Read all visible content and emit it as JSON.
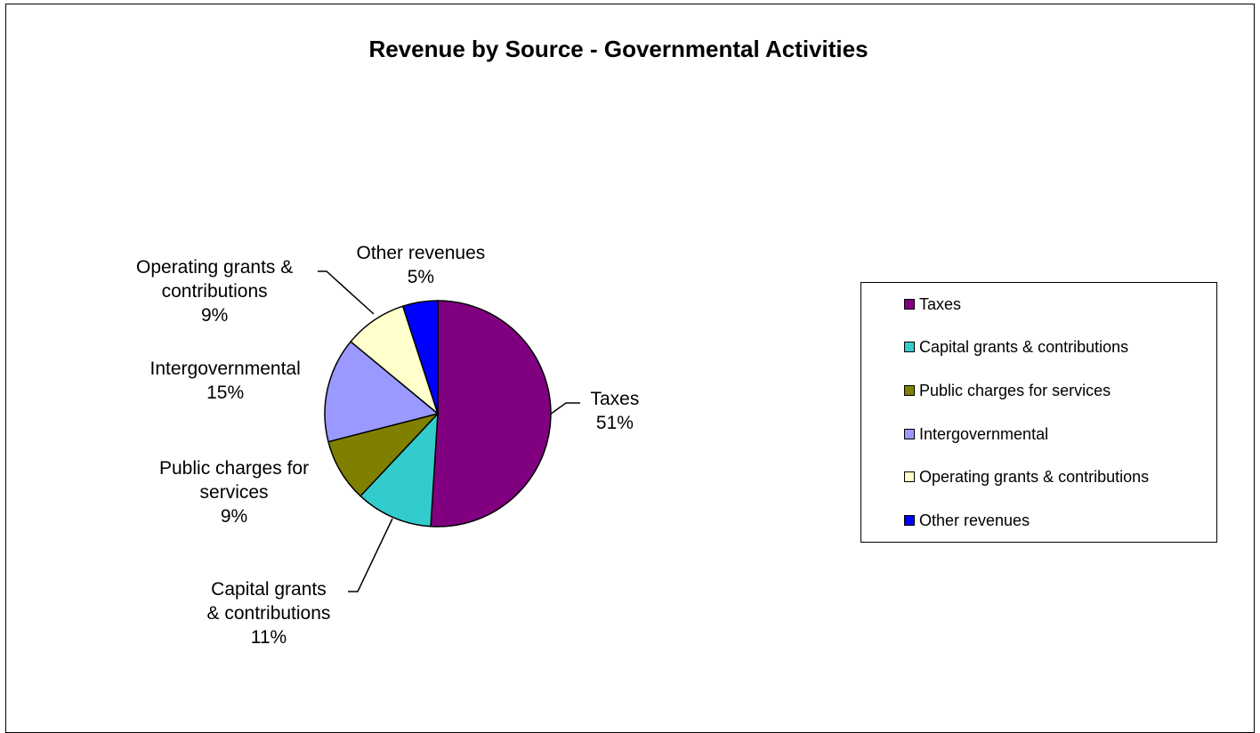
{
  "chart_data": {
    "type": "pie",
    "title": "Revenue by Source - Governmental Activities",
    "slices": [
      {
        "name": "Taxes",
        "value": 51,
        "label": "51%",
        "color": "#800080"
      },
      {
        "name": "Capital grants & contributions",
        "value": 11,
        "label": "11%",
        "color": "#33CCCC"
      },
      {
        "name": "Public charges for services",
        "value": 9,
        "label": "9%",
        "color": "#808000"
      },
      {
        "name": "Intergovernmental",
        "value": 15,
        "label": "15%",
        "color": "#9999FF"
      },
      {
        "name": "Operating grants & contributions",
        "value": 9,
        "label": "9%",
        "color": "#FFFFCC"
      },
      {
        "name": "Other revenues",
        "value": 5,
        "label": "5%",
        "color": "#0000FF"
      }
    ],
    "legend": {
      "position": "right",
      "items": [
        "Taxes",
        "Capital grants & contributions",
        "Public charges for services",
        "Intergovernmental",
        "Operating grants & contributions",
        "Other revenues"
      ]
    },
    "data_labels": [
      {
        "lines": [
          "Taxes",
          "51%"
        ]
      },
      {
        "lines": [
          "Capital grants",
          "& contributions",
          "11%"
        ]
      },
      {
        "lines": [
          "Public charges for",
          "services",
          "9%"
        ]
      },
      {
        "lines": [
          "Intergovernmental",
          "15%"
        ]
      },
      {
        "lines": [
          "Operating grants &",
          "contributions",
          "9%"
        ]
      },
      {
        "lines": [
          "Other revenues",
          "5%"
        ]
      }
    ]
  }
}
